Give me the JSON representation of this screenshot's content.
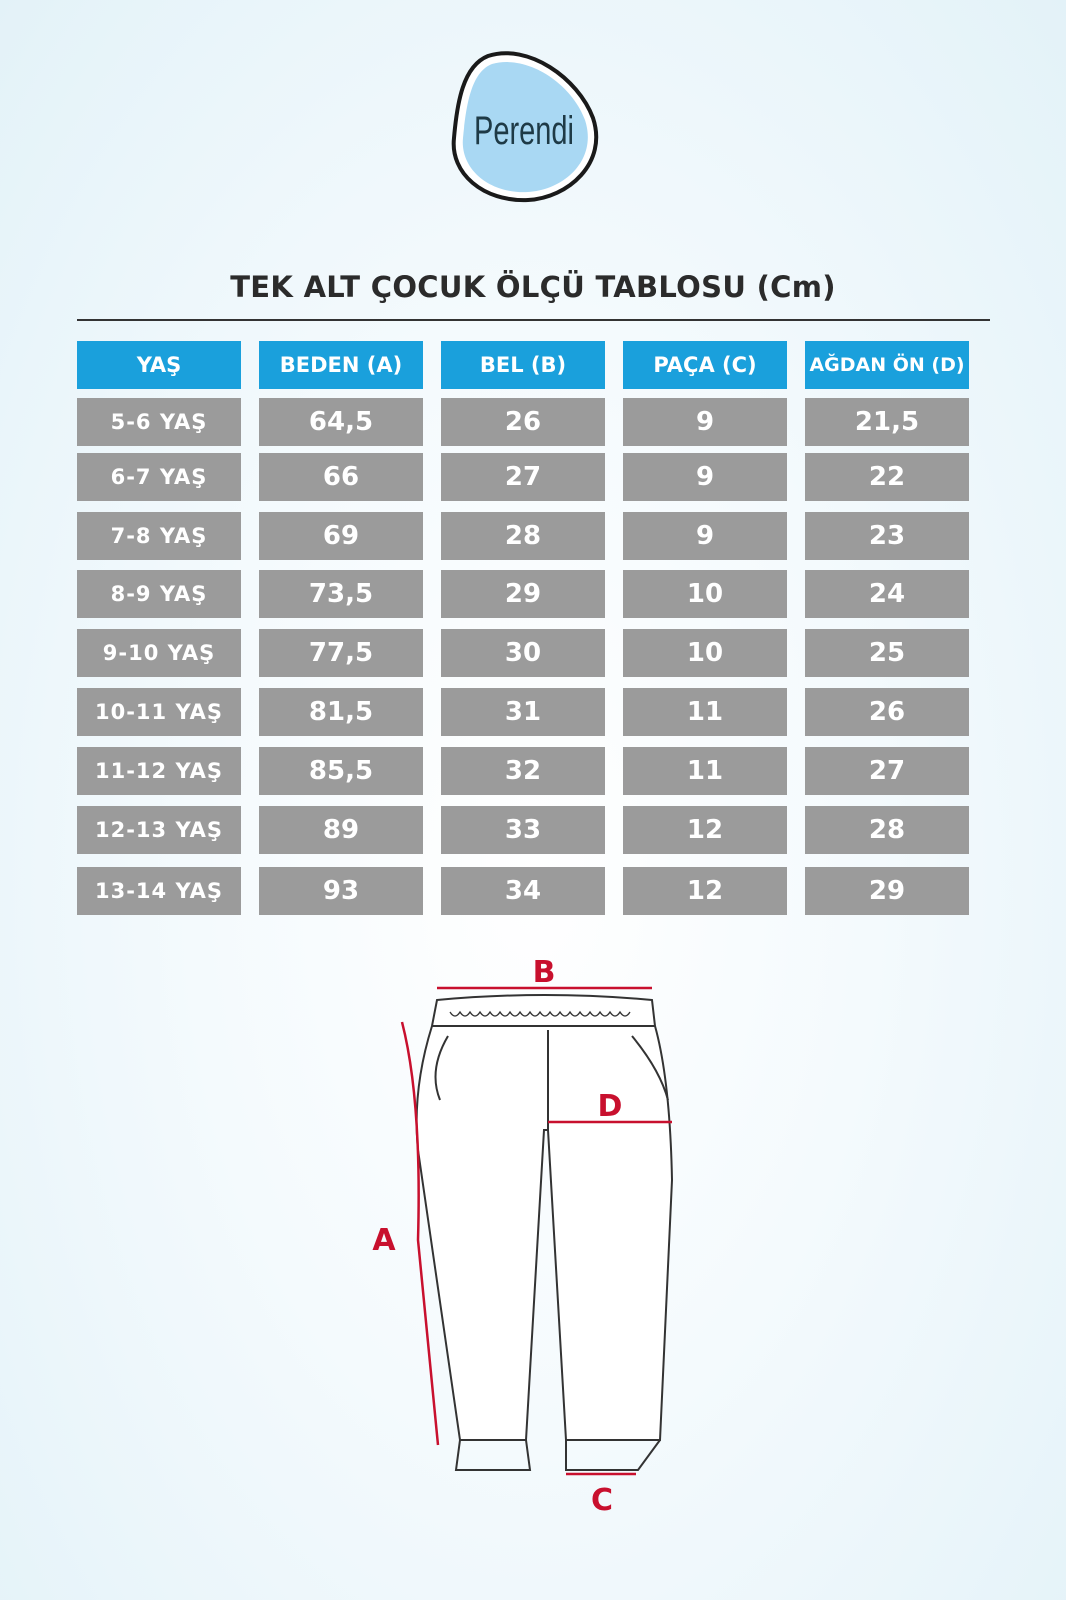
{
  "logo": {
    "text": "Perendi",
    "fill_color": "#a9d8f3"
  },
  "title": "TEK ALT ÇOCUK ÖLÇÜ TABLOSU (Cm)",
  "colors": {
    "header": "#1aa0dc",
    "cell": "#9b9b9b",
    "measure_line": "#c8102e"
  },
  "table": {
    "headers": [
      "YAŞ",
      "BEDEN (A)",
      "BEL (B)",
      "PAÇA (C)",
      "AĞDAN ÖN (D)"
    ],
    "rows": [
      [
        "5-6 YAŞ",
        "64,5",
        "26",
        "9",
        "21,5"
      ],
      [
        "6-7 YAŞ",
        "66",
        "27",
        "9",
        "22"
      ],
      [
        "7-8 YAŞ",
        "69",
        "28",
        "9",
        "23"
      ],
      [
        "8-9 YAŞ",
        "73,5",
        "29",
        "10",
        "24"
      ],
      [
        "9-10 YAŞ",
        "77,5",
        "30",
        "10",
        "25"
      ],
      [
        "10-11 YAŞ",
        "81,5",
        "31",
        "11",
        "26"
      ],
      [
        "11-12 YAŞ",
        "85,5",
        "32",
        "11",
        "27"
      ],
      [
        "12-13 YAŞ",
        "89",
        "33",
        "12",
        "28"
      ],
      [
        "13-14 YAŞ",
        "93",
        "34",
        "12",
        "29"
      ]
    ]
  },
  "diagram": {
    "label_a": "A",
    "label_b": "B",
    "label_c": "C",
    "label_d": "D"
  }
}
